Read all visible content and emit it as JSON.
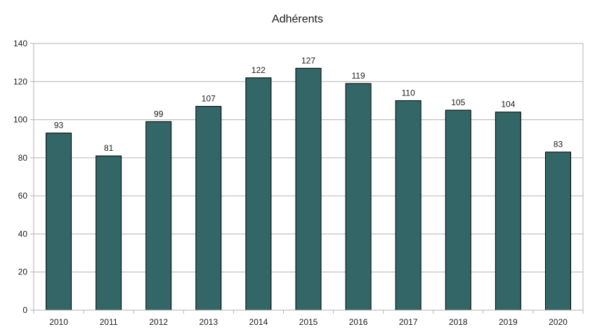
{
  "chart_data": {
    "type": "bar",
    "title": "Adhérents",
    "xlabel": "",
    "ylabel": "",
    "categories": [
      "2010",
      "2011",
      "2012",
      "2013",
      "2014",
      "2015",
      "2016",
      "2017",
      "2018",
      "2019",
      "2020"
    ],
    "values": [
      93,
      81,
      99,
      107,
      122,
      127,
      119,
      110,
      105,
      104,
      83
    ],
    "ylim": [
      0,
      140
    ],
    "yticks": [
      0,
      20,
      40,
      60,
      80,
      100,
      120,
      140
    ],
    "grid": true,
    "legend": "none",
    "data_labels": true,
    "colors": {
      "bar": "#336666",
      "grid": "#b3b3b3",
      "axis": "#b3b3b3"
    }
  }
}
